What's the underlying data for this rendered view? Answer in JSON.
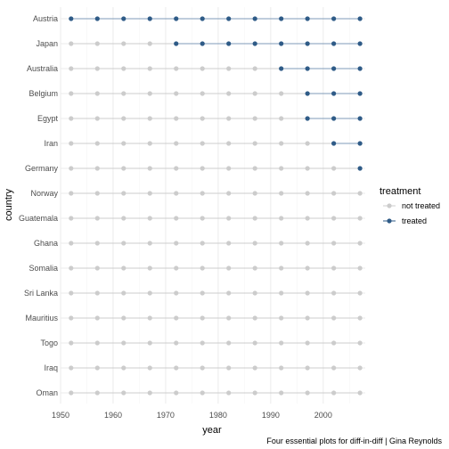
{
  "chart_data": {
    "type": "scatter",
    "title": "",
    "xlabel": "year",
    "ylabel": "country",
    "caption": "Four essential plots for diff-in-diff | Gina Reynolds",
    "xlim": [
      1950,
      2008
    ],
    "x_ticks": [
      "1950",
      "1960",
      "1970",
      "1980",
      "1990",
      "2000"
    ],
    "x_tick_values": [
      1950,
      1960,
      1970,
      1980,
      1990,
      2000
    ],
    "grid": true,
    "legend_position": "right",
    "legend": {
      "title": "treatment",
      "items": [
        {
          "label": "not treated",
          "color": "#cccccc"
        },
        {
          "label": "treated",
          "color": "#2f5b87"
        }
      ]
    },
    "years": [
      1952,
      1957,
      1962,
      1967,
      1972,
      1977,
      1982,
      1987,
      1992,
      1997,
      2002,
      2007
    ],
    "countries": [
      {
        "name": "Austria",
        "treated_from": 1952
      },
      {
        "name": "Japan",
        "treated_from": 1972
      },
      {
        "name": "Australia",
        "treated_from": 1992
      },
      {
        "name": "Belgium",
        "treated_from": 1997
      },
      {
        "name": "Egypt",
        "treated_from": 1997
      },
      {
        "name": "Iran",
        "treated_from": 2002
      },
      {
        "name": "Germany",
        "treated_from": 2007
      },
      {
        "name": "Norway",
        "treated_from": null
      },
      {
        "name": "Guatemala",
        "treated_from": null
      },
      {
        "name": "Ghana",
        "treated_from": null
      },
      {
        "name": "Somalia",
        "treated_from": null
      },
      {
        "name": "Sri Lanka",
        "treated_from": null
      },
      {
        "name": "Mauritius",
        "treated_from": null
      },
      {
        "name": "Togo",
        "treated_from": null
      },
      {
        "name": "Iraq",
        "treated_from": null
      },
      {
        "name": "Oman",
        "treated_from": null
      }
    ],
    "colors": {
      "treated": "#2f5b87",
      "not_treated": "#cccccc",
      "treated_line": "#7f9bb8",
      "grid_major": "#ebebeb",
      "grid_minor": "#f5f5f5"
    }
  }
}
